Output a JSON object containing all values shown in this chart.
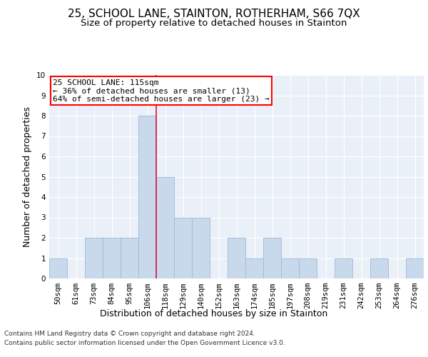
{
  "title1": "25, SCHOOL LANE, STAINTON, ROTHERHAM, S66 7QX",
  "title2": "Size of property relative to detached houses in Stainton",
  "xlabel": "Distribution of detached houses by size in Stainton",
  "ylabel": "Number of detached properties",
  "bin_labels": [
    "50sqm",
    "61sqm",
    "73sqm",
    "84sqm",
    "95sqm",
    "106sqm",
    "118sqm",
    "129sqm",
    "140sqm",
    "152sqm",
    "163sqm",
    "174sqm",
    "185sqm",
    "197sqm",
    "208sqm",
    "219sqm",
    "231sqm",
    "242sqm",
    "253sqm",
    "264sqm",
    "276sqm"
  ],
  "bar_heights": [
    1,
    0,
    2,
    2,
    2,
    8,
    5,
    3,
    3,
    0,
    2,
    1,
    2,
    1,
    1,
    0,
    1,
    0,
    1,
    0,
    1
  ],
  "bar_color": "#c9d9ec",
  "bar_edge_color": "#a0b8d8",
  "red_line_x": 6,
  "annotation_text_line1": "25 SCHOOL LANE: 115sqm",
  "annotation_text_line2": "← 36% of detached houses are smaller (13)",
  "annotation_text_line3": "64% of semi-detached houses are larger (23) →",
  "footnote1": "Contains HM Land Registry data © Crown copyright and database right 2024.",
  "footnote2": "Contains public sector information licensed under the Open Government Licence v3.0.",
  "ylim": [
    0,
    10
  ],
  "background_color": "#eaf0f8",
  "grid_color": "#ffffff",
  "title1_fontsize": 11,
  "title2_fontsize": 9.5,
  "tick_fontsize": 7.5,
  "ylabel_fontsize": 9,
  "xlabel_fontsize": 9,
  "footnote_fontsize": 6.5,
  "annotation_fontsize": 8
}
